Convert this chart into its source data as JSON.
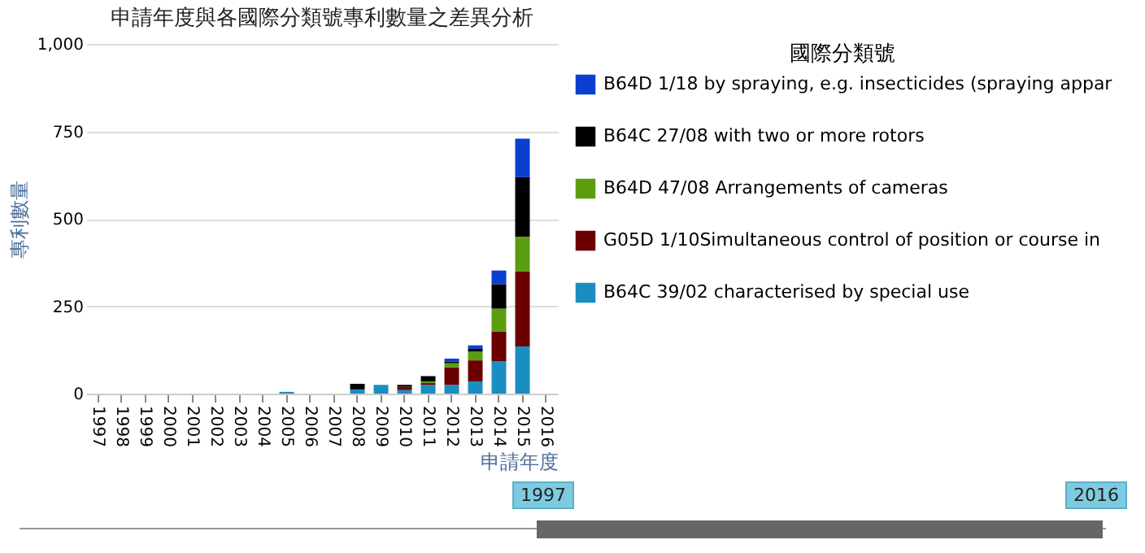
{
  "chart_data": {
    "type": "bar",
    "title": "申請年度與各國際分類號專利數量之差異分析",
    "xlabel": "申請年度",
    "ylabel": "專利數量",
    "legend_title": "國際分類號",
    "categories": [
      "1997",
      "1998",
      "1999",
      "2000",
      "2001",
      "2002",
      "2003",
      "2004",
      "2005",
      "2006",
      "2007",
      "2008",
      "2009",
      "2010",
      "2011",
      "2012",
      "2013",
      "2014",
      "2015",
      "2016"
    ],
    "stacked": true,
    "series": [
      {
        "name": "B64C 39/02 characterised by special use",
        "color": "#1a8ec0",
        "values": [
          0,
          0,
          0,
          0,
          0,
          0,
          0,
          0,
          5,
          0,
          0,
          12,
          25,
          10,
          25,
          25,
          35,
          93,
          135,
          0
        ]
      },
      {
        "name": "G05D 1/10Simultaneous control of position or course in",
        "color": "#6b0000",
        "values": [
          0,
          0,
          0,
          0,
          0,
          0,
          0,
          0,
          0,
          0,
          0,
          0,
          0,
          10,
          5,
          50,
          60,
          85,
          214,
          0
        ]
      },
      {
        "name": "B64D 47/08 Arrangements of cameras",
        "color": "#5a9e10",
        "values": [
          0,
          0,
          0,
          0,
          0,
          0,
          0,
          0,
          0,
          0,
          0,
          0,
          0,
          0,
          5,
          12,
          25,
          65,
          99,
          0
        ]
      },
      {
        "name": "B64C 27/08 with two or more rotors",
        "color": "#000000",
        "values": [
          0,
          0,
          0,
          0,
          0,
          0,
          0,
          0,
          0,
          0,
          0,
          16,
          0,
          5,
          15,
          5,
          8,
          70,
          171,
          0
        ]
      },
      {
        "name": "B64D 1/18 by spraying, e.g. insecticides (spraying appar",
        "color": "#0a3fd0",
        "values": [
          0,
          0,
          0,
          0,
          0,
          0,
          0,
          0,
          0,
          0,
          0,
          0,
          0,
          0,
          0,
          8,
          10,
          39,
          110,
          0
        ]
      }
    ],
    "ylim": [
      0,
      1000
    ],
    "yticks": [
      0,
      {
        "value": 250,
        "label": "250"
      },
      500,
      750,
      {
        "value": 1000,
        "label": "1,000"
      }
    ],
    "grid": "y",
    "legend": "top right",
    "annotations": [
      "1997",
      "2016"
    ]
  }
}
